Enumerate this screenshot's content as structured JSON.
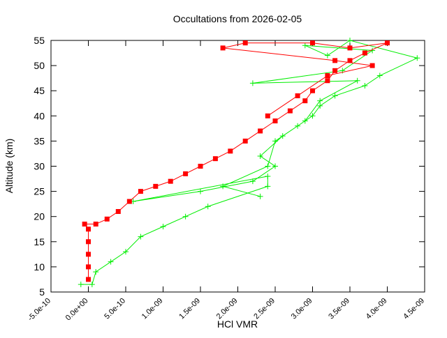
{
  "chart_data": {
    "type": "line",
    "title": "Occultations from 2026-02-05",
    "x_label": "HCl VMR",
    "y_label": "Altitude (km)",
    "xlim": [
      -5e-10,
      4.5e-09
    ],
    "ylim": [
      5,
      55
    ],
    "xticks": [
      {
        "value": -5e-10,
        "label": "-5.0e-10"
      },
      {
        "value": 0,
        "label": "0.0e+00"
      },
      {
        "value": 5e-10,
        "label": "5.0e-10"
      },
      {
        "value": 1e-09,
        "label": "1.0e-09"
      },
      {
        "value": 1.5e-09,
        "label": "1.5e-09"
      },
      {
        "value": 2e-09,
        "label": "2.0e-09"
      },
      {
        "value": 2.5e-09,
        "label": "2.5e-09"
      },
      {
        "value": 3e-09,
        "label": "3.0e-09"
      },
      {
        "value": 3.5e-09,
        "label": "3.5e-09"
      },
      {
        "value": 4e-09,
        "label": "4.0e-09"
      },
      {
        "value": 4.5e-09,
        "label": "4.5e-09"
      }
    ],
    "yticks": [
      5,
      10,
      15,
      20,
      25,
      30,
      35,
      40,
      45,
      50,
      55
    ],
    "series": [
      {
        "color": "#00ee00",
        "marker": "plus",
        "x": [
          -1e-10,
          5e-11,
          1e-10,
          3e-10,
          5e-10,
          7e-10,
          1e-09,
          1.3e-09,
          1.6e-09,
          2.4e-09,
          2.4e-09,
          6e-10,
          1.5e-09,
          2.2e-09,
          2.5e-09,
          2.3e-09,
          2.6e-09,
          2.8e-09,
          3e-09,
          3.1e-09,
          3.3e-09,
          3.7e-09,
          3.9e-09,
          4.4e-09,
          3.5e-09,
          3.2e-09,
          2.9e-09,
          3.8e-09,
          3.4e-09,
          2.2e-09,
          3.6e-09,
          3.1e-09,
          2.9e-09,
          2.5e-09,
          2.4e-09,
          1.8e-09,
          2.3e-09
        ],
        "values": [
          6.5,
          6.5,
          9,
          11,
          13,
          16,
          18,
          20,
          22,
          26,
          28,
          23,
          25,
          27,
          30,
          32,
          36,
          38,
          40,
          42,
          44,
          46,
          48,
          51.5,
          55,
          52,
          54,
          53,
          49,
          46.5,
          47,
          43,
          39,
          35,
          30,
          26,
          24
        ]
      },
      {
        "color": "#ff0000",
        "marker": "square",
        "x": [
          0,
          0,
          0,
          0,
          0,
          -5e-11,
          1e-10,
          2.5e-10,
          4e-10,
          5.5e-10,
          7e-10,
          9e-10,
          1.1e-09,
          1.3e-09,
          1.5e-09,
          1.7e-09,
          1.9e-09,
          2.1e-09,
          2.3e-09,
          2.5e-09,
          2.7e-09,
          2.9e-09,
          3e-09,
          3.2e-09,
          3.3e-09,
          3.5e-09,
          3.7e-09,
          4e-09,
          3.5e-09,
          3e-09,
          2.1e-09,
          1.8e-09,
          3.3e-09,
          3.8e-09,
          3.2e-09,
          2.8e-09,
          2.4e-09
        ],
        "values": [
          7.5,
          10,
          12.5,
          15,
          17.5,
          18.5,
          18.5,
          19.5,
          21,
          23,
          25,
          26,
          27,
          28.5,
          30,
          31.5,
          33,
          35,
          37,
          39,
          41,
          43,
          45,
          47,
          49,
          51,
          52.5,
          54.5,
          53.5,
          54.5,
          54.5,
          53.5,
          51,
          50,
          48,
          44,
          40
        ]
      }
    ]
  }
}
